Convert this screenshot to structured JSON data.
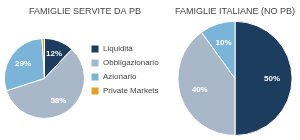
{
  "chart_data": [
    {
      "type": "pie",
      "title": "FAMIGLIE SERVITE DA PB",
      "categories": [
        "Liquidità",
        "Obbligazionario",
        "Azionario",
        "Private Markets"
      ],
      "values": [
        12,
        58,
        29,
        1
      ],
      "value_labels": [
        "12%",
        "58%",
        "29%",
        null
      ],
      "colors": [
        "#1c3d5e",
        "#a8b8c8",
        "#7ab4d8",
        "#e8a020"
      ],
      "data_labels": true,
      "legend": "right"
    },
    {
      "type": "pie",
      "title": "FAMIGLIE ITALIANE (NO PB)",
      "categories": [
        "Liquidità",
        "Obbligazionario",
        "Azionario"
      ],
      "values": [
        50,
        40,
        10
      ],
      "value_labels": [
        "50%",
        "40%",
        "10%"
      ],
      "colors": [
        "#1c3d5e",
        "#a8b8c8",
        "#7ab4d8"
      ],
      "data_labels": true
    }
  ]
}
